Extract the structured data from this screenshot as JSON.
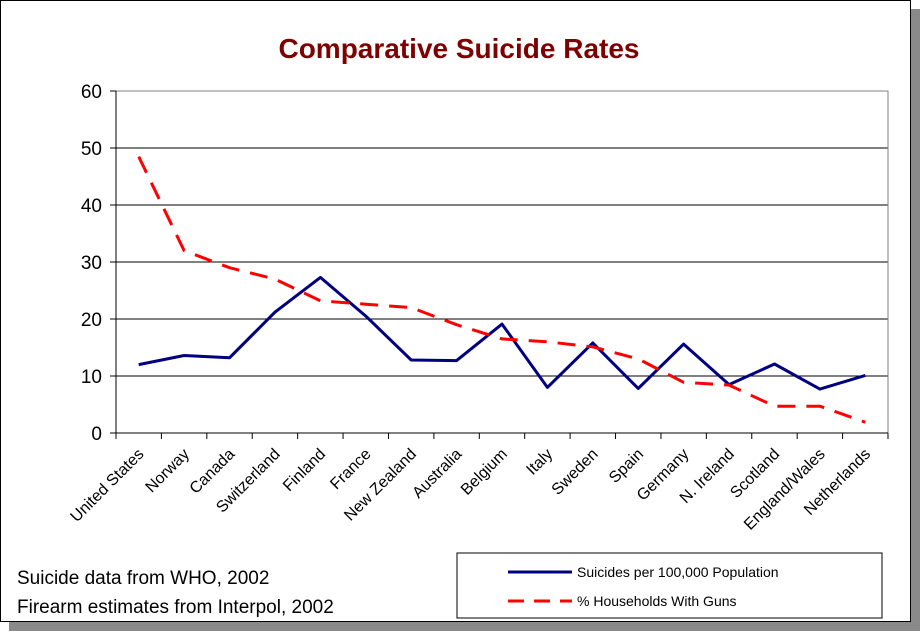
{
  "chart_data": {
    "type": "line",
    "title": "Comparative Suicide Rates",
    "xlabel": "",
    "ylabel": "",
    "ylim": [
      0,
      60
    ],
    "yticks": [
      0,
      10,
      20,
      30,
      40,
      50,
      60
    ],
    "grid": true,
    "legend_position": "bottom-right",
    "categories": [
      "United States",
      "Norway",
      "Canada",
      "Switzerland",
      "Finland",
      "France",
      "New Zealand",
      "Australia",
      "Belgium",
      "Italy",
      "Sweden",
      "Spain",
      "Germany",
      "N. Ireland",
      "Scotland",
      "England/Wales",
      "Netherlands"
    ],
    "series": [
      {
        "name": "Suicides per 100,000 Population",
        "color": "#000080",
        "style": "solid",
        "values": [
          12,
          13.6,
          13.2,
          21.2,
          27.3,
          20.5,
          12.8,
          12.7,
          19.1,
          8,
          15.8,
          7.8,
          15.6,
          8.5,
          12.1,
          7.7,
          10.1
        ]
      },
      {
        "name": "% Households With Guns",
        "color": "#ff0000",
        "style": "dashed",
        "values": [
          48.5,
          32,
          29,
          27,
          23.2,
          22.6,
          22,
          19,
          16.5,
          16,
          15.1,
          13,
          8.9,
          8.4,
          4.7,
          4.7,
          1.9
        ]
      }
    ]
  },
  "notes": {
    "line1": "Suicide data from WHO, 2002",
    "line2": "Firearm estimates from Interpol, 2002"
  }
}
